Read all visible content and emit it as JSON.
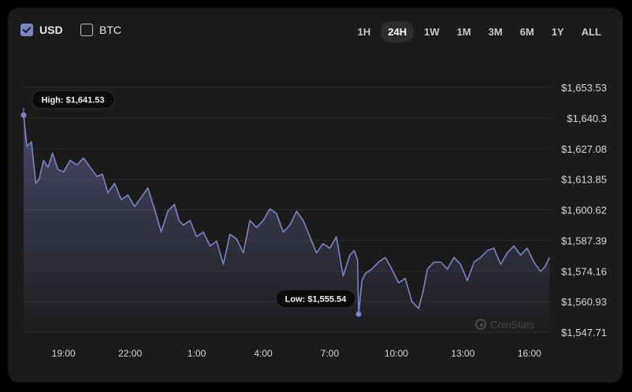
{
  "currency_toggle": {
    "usd": {
      "label": "USD",
      "checked": true
    },
    "btc": {
      "label": "BTC",
      "checked": false
    }
  },
  "time_ranges": [
    "1H",
    "24H",
    "1W",
    "1M",
    "3M",
    "6M",
    "1Y",
    "ALL"
  ],
  "active_range": "24H",
  "watermark": "CoinStats",
  "colors": {
    "line": "#7c84c8",
    "card": "#1b1b1b",
    "accent_checkbox": "#7c84c8"
  },
  "chart_data": {
    "type": "area",
    "title": "",
    "xlabel": "",
    "ylabel": "",
    "y_ticks": [
      "1,653.53",
      "1,640.3",
      "1,627.08",
      "1,613.85",
      "1,600.62",
      "1,587.39",
      "1,574.16",
      "1,560.93",
      "1,547.71"
    ],
    "ylim": [
      1547.71,
      1653.53
    ],
    "x_ticks": [
      "19:00",
      "22:00",
      "1:00",
      "4:00",
      "7:00",
      "10:00",
      "13:00",
      "16:00"
    ],
    "x_tick_hours": [
      19,
      22,
      25,
      28,
      31,
      34,
      37,
      40
    ],
    "xlim": [
      17.2,
      41.0
    ],
    "grid": true,
    "high_label": "High: $1,641.53",
    "low_label": "Low: $1,555.54",
    "high_point": {
      "x": 17.2,
      "y": 1641.53
    },
    "low_point": {
      "x": 32.3,
      "y": 1555.54
    },
    "series": [
      {
        "x": [
          17.2,
          17.35,
          17.55,
          17.75,
          17.9,
          18.1,
          18.3,
          18.5,
          18.75,
          19.0,
          19.3,
          19.6,
          19.9,
          20.2,
          20.5,
          20.75,
          21.0,
          21.3,
          21.6,
          21.9,
          22.2,
          22.5,
          22.8,
          23.1,
          23.4,
          23.7,
          24.0,
          24.2,
          24.4,
          24.7,
          25.0,
          25.3,
          25.6,
          25.9,
          26.2,
          26.5,
          26.8,
          27.1,
          27.4,
          27.7,
          28.0,
          28.3,
          28.6,
          28.9,
          29.2,
          29.5,
          29.8,
          30.1,
          30.4,
          30.7,
          31.0,
          31.3,
          31.6,
          31.9,
          32.1,
          32.25,
          32.3,
          32.45,
          32.6,
          32.9,
          33.2,
          33.5,
          33.8,
          34.1,
          34.4,
          34.7,
          35.0,
          35.2,
          35.4,
          35.7,
          36.0,
          36.3,
          36.6,
          36.9,
          37.2,
          37.5,
          37.8,
          38.1,
          38.4,
          38.7,
          39.0,
          39.3,
          39.6,
          39.9,
          40.2,
          40.5,
          40.7,
          40.9
        ],
        "y": [
          1641.53,
          1628.0,
          1630.0,
          1612.0,
          1614.0,
          1622.0,
          1619.0,
          1625.0,
          1618.0,
          1617.0,
          1622.0,
          1620.0,
          1623.0,
          1619.0,
          1615.0,
          1616.0,
          1608.0,
          1612.0,
          1605.0,
          1607.0,
          1602.0,
          1606.0,
          1610.0,
          1601.0,
          1591.0,
          1600.0,
          1603.0,
          1596.0,
          1594.0,
          1596.0,
          1589.0,
          1591.0,
          1585.0,
          1587.0,
          1577.0,
          1590.0,
          1588.0,
          1582.0,
          1596.0,
          1593.0,
          1596.0,
          1601.0,
          1599.0,
          1591.0,
          1594.0,
          1600.0,
          1596.0,
          1589.0,
          1582.0,
          1586.0,
          1584.0,
          1589.0,
          1572.0,
          1581.0,
          1583.0,
          1579.0,
          1555.54,
          1570.0,
          1573.0,
          1575.0,
          1578.0,
          1580.0,
          1575.0,
          1569.0,
          1571.0,
          1561.0,
          1558.0,
          1565.0,
          1575.0,
          1578.0,
          1578.0,
          1575.0,
          1580.0,
          1577.0,
          1570.0,
          1578.0,
          1580.0,
          1583.0,
          1584.0,
          1577.0,
          1582.0,
          1585.0,
          1581.0,
          1584.0,
          1578.0,
          1574.0,
          1576.0,
          1580.0
        ]
      }
    ]
  }
}
